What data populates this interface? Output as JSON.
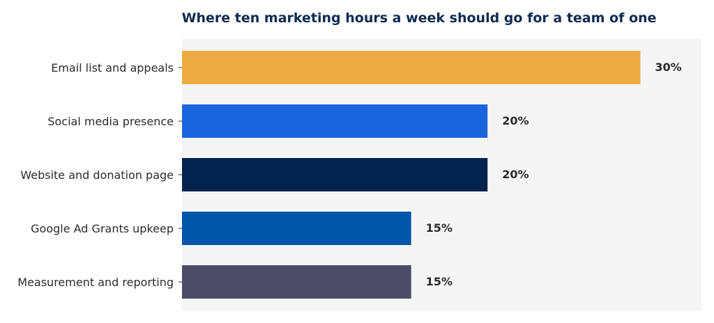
{
  "chart_data": {
    "type": "bar",
    "orientation": "horizontal",
    "title": "Where ten marketing hours a week should go for a team of one",
    "xlabel": "",
    "ylabel": "",
    "xlim": [
      0,
      34
    ],
    "grid": false,
    "legend": "none",
    "background_color": "#f5f5f6",
    "categories": [
      "Email list and appeals",
      "Social media presence",
      "Website and donation page",
      "Google Ad Grants upkeep",
      "Measurement and reporting"
    ],
    "values": [
      30,
      20,
      20,
      15,
      15
    ],
    "value_labels": [
      "30%",
      "20%",
      "20%",
      "15%",
      "15%"
    ],
    "colors": [
      "#eeaa42",
      "#1a65dd",
      "#03234f",
      "#0057aa",
      "#4c4c66"
    ]
  }
}
